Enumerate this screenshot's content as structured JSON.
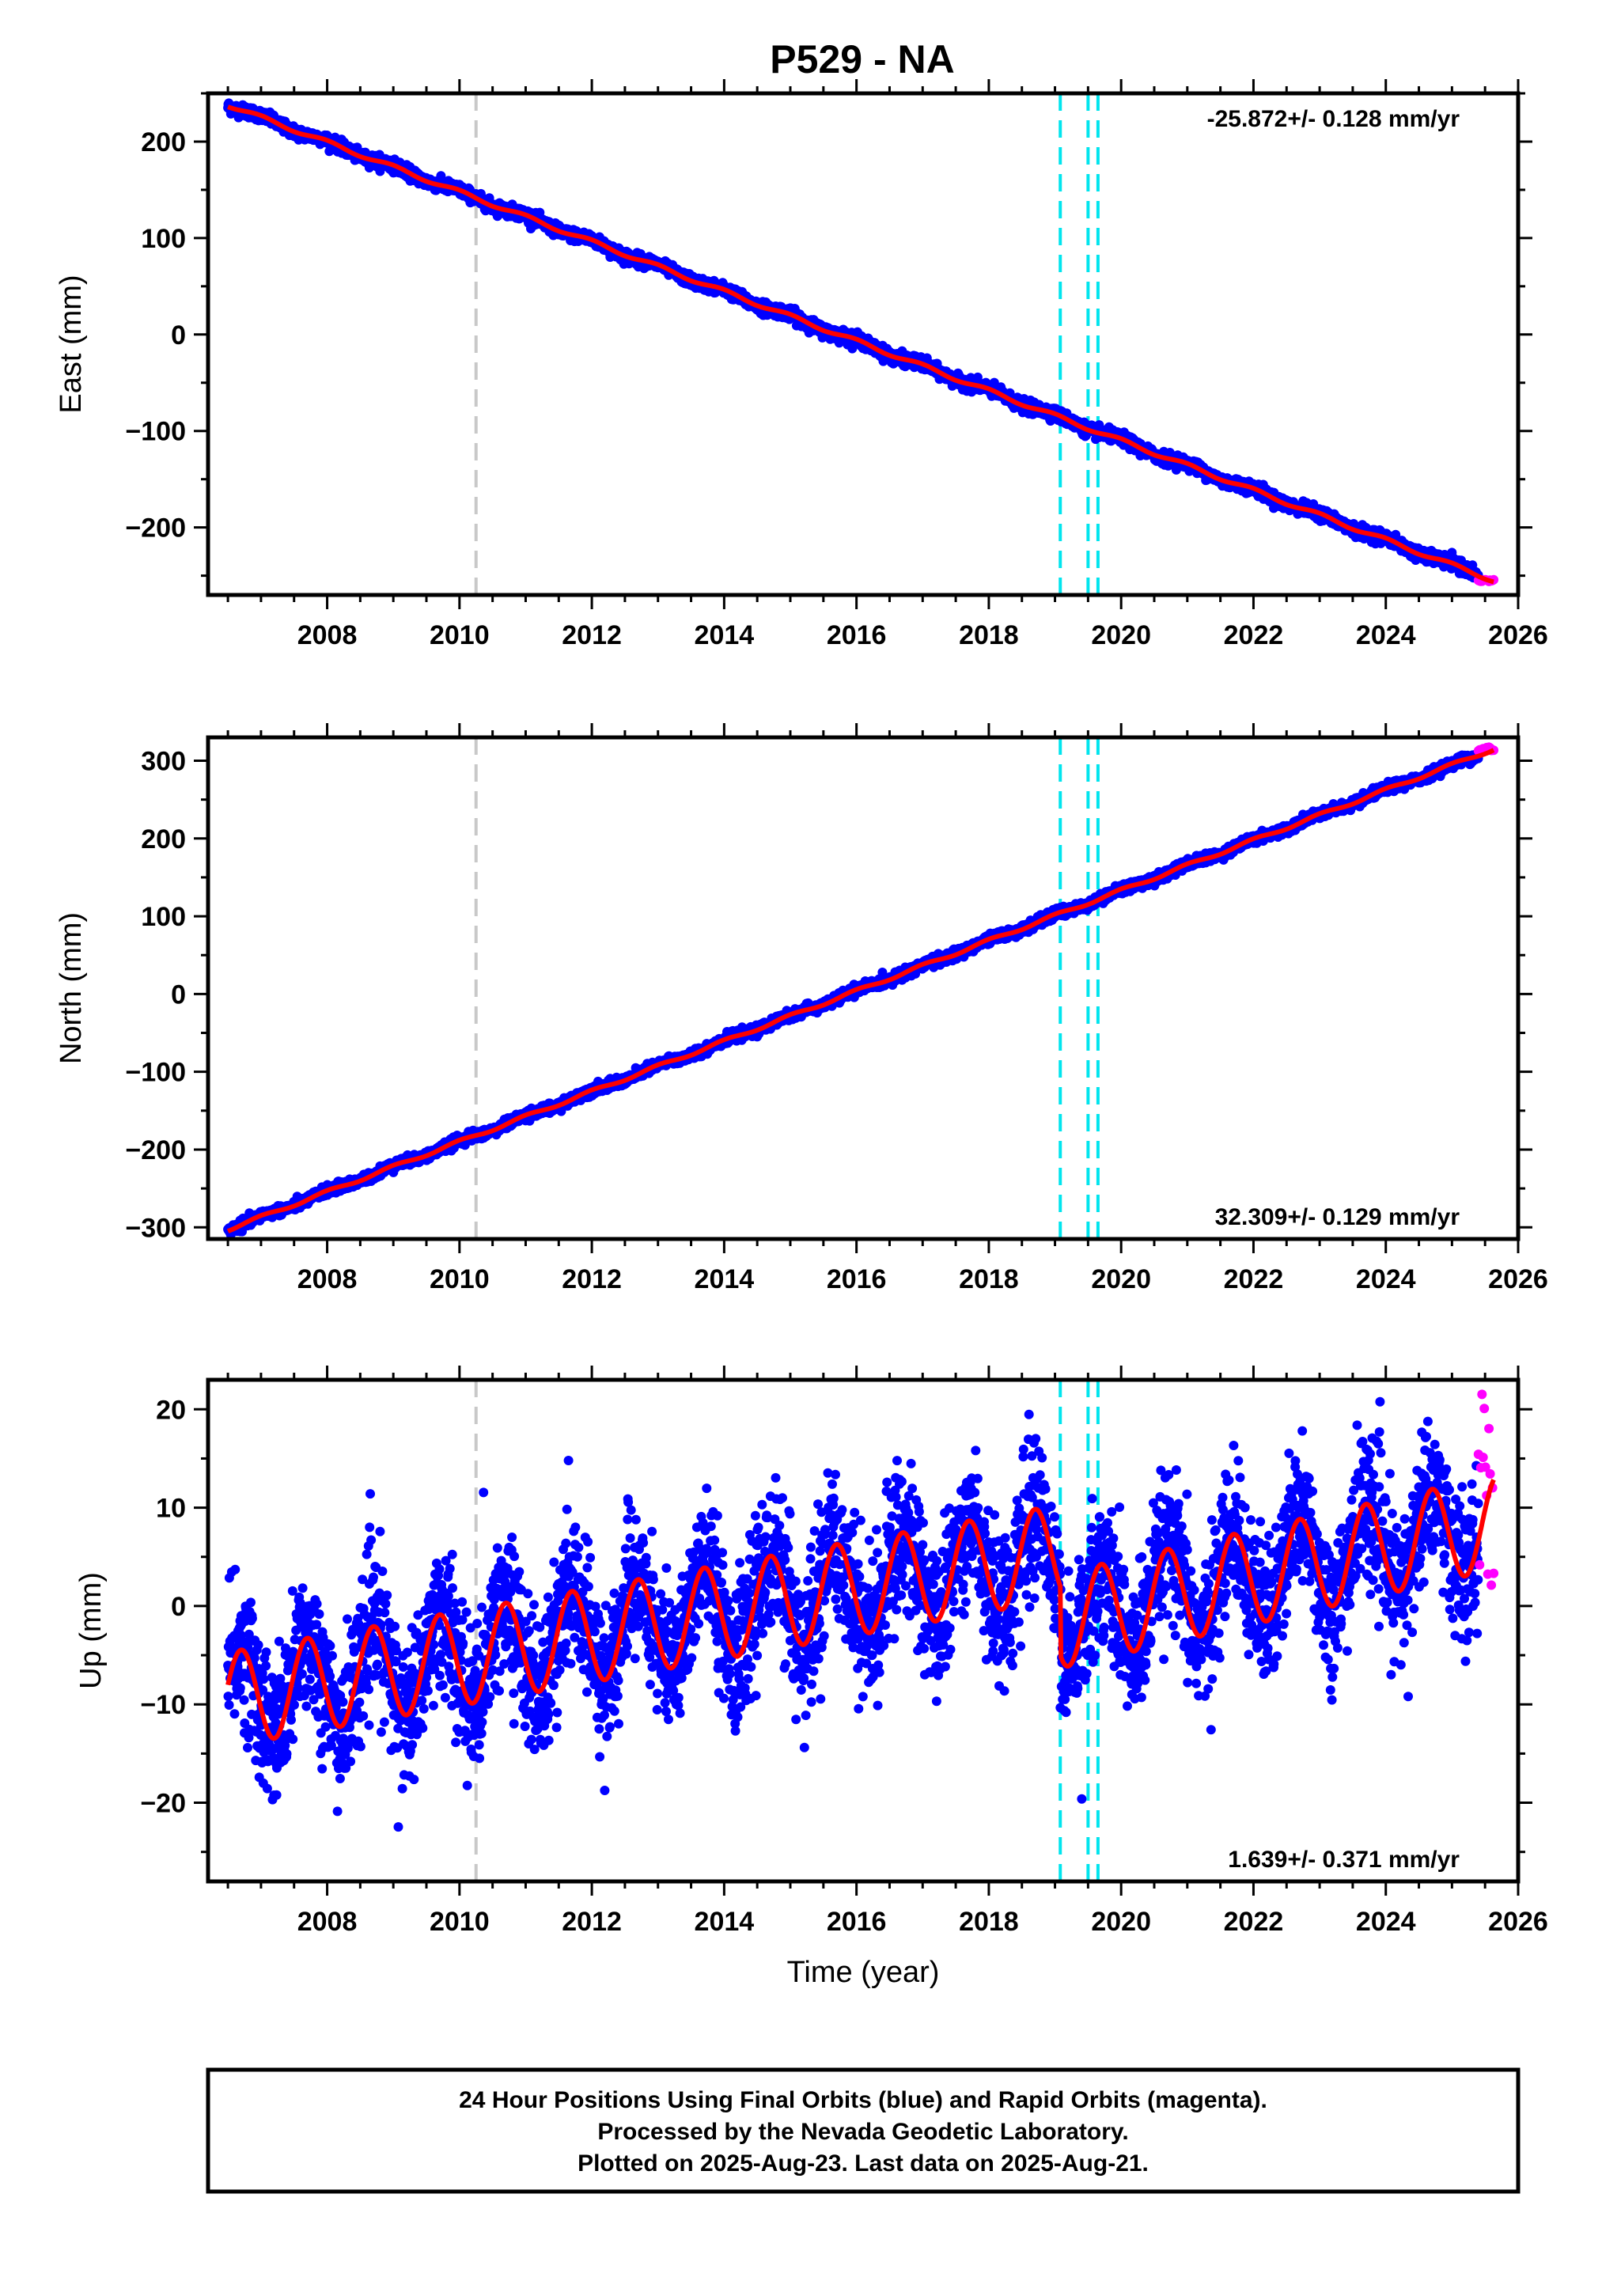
{
  "title": "P529 - NA",
  "footer": {
    "lines": [
      "24 Hour Positions Using Final Orbits (blue) and Rapid Orbits (magenta).",
      "Processed by the Nevada Geodetic Laboratory.",
      "Plotted on 2025-Aug-23. Last data on 2025-Aug-21."
    ]
  },
  "colors": {
    "final_orbits": "#0000ff",
    "rapid_orbits": "#ff00ff",
    "model": "#ff0000",
    "event_gray": "#c8c8c8",
    "event_cyan": "#00e5ee"
  },
  "chart_data": [
    {
      "type": "scatter",
      "name": "east",
      "ylabel": "East (mm)",
      "xlabel": "",
      "xlim": [
        2006.2,
        2026.0
      ],
      "ylim": [
        -270,
        250
      ],
      "xticks": [
        2008,
        2010,
        2012,
        2014,
        2016,
        2018,
        2020,
        2022,
        2024,
        2026
      ],
      "yticks": [
        -200,
        -100,
        0,
        100,
        200
      ],
      "yticklabels": [
        "−200",
        "−100",
        "0",
        "100",
        "200"
      ],
      "rate_label": "-25.872+/- 0.128 mm/yr",
      "rate_position": "top-right",
      "model": {
        "start_year": 2006.5,
        "end_year": 2025.63,
        "start_value": 238,
        "end_value": -255,
        "seasonal_amplitude": 2
      },
      "noise": 3,
      "rapid_points": {
        "from_year": 2025.4,
        "value_range": [
          -254,
          -256
        ]
      },
      "events": [
        {
          "year": 2010.25,
          "color": "gray"
        },
        {
          "year": 2019.08,
          "color": "cyan"
        },
        {
          "year": 2019.5,
          "color": "cyan"
        },
        {
          "year": 2019.65,
          "color": "cyan"
        }
      ]
    },
    {
      "type": "scatter",
      "name": "north",
      "ylabel": "North (mm)",
      "xlabel": "",
      "xlim": [
        2006.2,
        2026.0
      ],
      "ylim": [
        -315,
        330
      ],
      "xticks": [
        2008,
        2010,
        2012,
        2014,
        2016,
        2018,
        2020,
        2022,
        2024,
        2026
      ],
      "yticks": [
        -300,
        -200,
        -100,
        0,
        100,
        200,
        300
      ],
      "yticklabels": [
        "−300",
        "−200",
        "−100",
        "0",
        "100",
        "200",
        "300"
      ],
      "rate_label": "32.309+/- 0.129 mm/yr",
      "rate_position": "bottom-right",
      "model": {
        "start_year": 2006.5,
        "end_year": 2025.63,
        "start_value": -303,
        "end_value": 315,
        "seasonal_amplitude": 2
      },
      "noise": 3,
      "rapid_points": {
        "from_year": 2025.4,
        "value_range": [
          312,
          318
        ]
      },
      "events": [
        {
          "year": 2010.25,
          "color": "gray"
        },
        {
          "year": 2019.08,
          "color": "cyan"
        },
        {
          "year": 2019.5,
          "color": "cyan"
        },
        {
          "year": 2019.65,
          "color": "cyan"
        }
      ]
    },
    {
      "type": "scatter",
      "name": "up",
      "ylabel": "Up (mm)",
      "xlabel": "Time (year)",
      "xlim": [
        2006.2,
        2026.0
      ],
      "ylim": [
        -28,
        23
      ],
      "xticks": [
        2008,
        2010,
        2012,
        2014,
        2016,
        2018,
        2020,
        2022,
        2024,
        2026
      ],
      "yticks": [
        -20,
        -10,
        0,
        10,
        20
      ],
      "yticklabels": [
        "−20",
        "−10",
        "0",
        "10",
        "20"
      ],
      "rate_label": "1.639+/- 0.371 mm/yr",
      "rate_position": "bottom-right",
      "model": {
        "start_year": 2006.5,
        "end_year": 2025.63,
        "seasonal_amplitude": 4.8,
        "seasonal_peak_phase": 0.7,
        "segments": [
          {
            "from": 2006.5,
            "to": 2019.08,
            "start_value": -9.5,
            "end_value": 5.5
          },
          {
            "from": 2019.08,
            "to": 2025.63,
            "start_value": -1.5,
            "end_value": 8.5
          }
        ]
      },
      "noise": 3.6,
      "rapid_points": {
        "from_year": 2025.4,
        "value_range": [
          0,
          22
        ]
      },
      "events": [
        {
          "year": 2010.25,
          "color": "gray"
        },
        {
          "year": 2019.08,
          "color": "cyan"
        },
        {
          "year": 2019.5,
          "color": "cyan"
        },
        {
          "year": 2019.65,
          "color": "cyan"
        }
      ]
    }
  ]
}
